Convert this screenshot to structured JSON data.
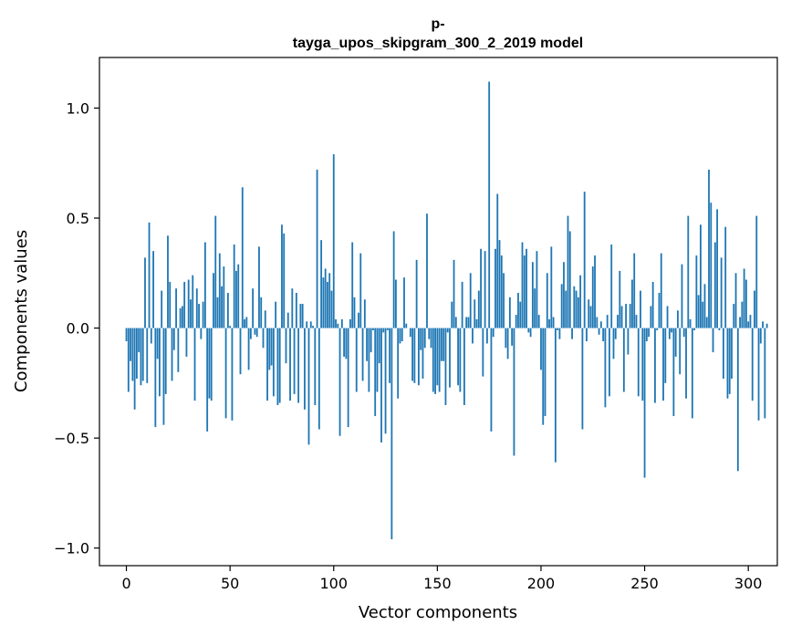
{
  "chart_data": {
    "type": "bar",
    "title_lines": [
      "p-",
      "tayga_upos_skipgram_300_2_2019 model"
    ],
    "xlabel": "Vector components",
    "ylabel": "Components values",
    "xlim": [
      -13,
      314
    ],
    "ylim": [
      -1.08,
      1.23
    ],
    "xticks": [
      0,
      50,
      100,
      150,
      200,
      250,
      300
    ],
    "yticks": [
      -1.0,
      -0.5,
      0.0,
      0.5,
      1.0
    ],
    "ytick_labels": [
      "−1.0",
      "−0.5",
      "0.0",
      "0.5",
      "1.0"
    ],
    "grid": false,
    "bar_color": "#1f77b4",
    "values": [
      -0.06,
      -0.29,
      -0.15,
      -0.24,
      -0.37,
      -0.23,
      -0.11,
      -0.26,
      -0.24,
      0.32,
      -0.25,
      0.48,
      -0.07,
      0.35,
      -0.45,
      -0.14,
      -0.31,
      0.17,
      -0.44,
      -0.3,
      0.42,
      0.21,
      -0.24,
      -0.1,
      0.18,
      -0.2,
      0.09,
      0.1,
      0.21,
      -0.13,
      0.22,
      0.13,
      0.24,
      -0.33,
      0.18,
      0.11,
      -0.05,
      0.12,
      0.39,
      -0.47,
      -0.32,
      -0.33,
      0.25,
      0.51,
      0.14,
      0.34,
      0.19,
      0.28,
      -0.41,
      0.16,
      0.01,
      -0.42,
      0.38,
      0.26,
      0.29,
      -0.21,
      0.64,
      0.04,
      0.05,
      -0.19,
      -0.05,
      0.18,
      -0.03,
      -0.04,
      0.37,
      0.14,
      -0.09,
      0.08,
      -0.33,
      -0.19,
      -0.17,
      -0.31,
      0.12,
      -0.35,
      -0.34,
      0.47,
      0.43,
      -0.16,
      0.07,
      -0.33,
      0.18,
      -0.3,
      0.16,
      -0.34,
      0.11,
      0.11,
      -0.37,
      0.03,
      -0.53,
      0.03,
      0.01,
      -0.35,
      0.72,
      -0.46,
      0.4,
      0.23,
      0.27,
      0.21,
      0.25,
      0.17,
      0.79,
      0.04,
      0.02,
      -0.49,
      0.04,
      -0.13,
      -0.14,
      -0.45,
      0.04,
      0.39,
      0.14,
      -0.29,
      0.07,
      0.34,
      -0.24,
      0.13,
      -0.15,
      -0.29,
      -0.11,
      -0.01,
      -0.4,
      -0.29,
      -0.16,
      -0.52,
      -0.02,
      -0.48,
      -0.01,
      -0.25,
      -0.96,
      0.44,
      0.22,
      -0.32,
      -0.07,
      -0.06,
      0.23,
      0.02,
      0.0,
      -0.04,
      -0.24,
      -0.25,
      0.31,
      -0.26,
      -0.1,
      -0.23,
      -0.09,
      0.52,
      -0.05,
      -0.09,
      -0.29,
      -0.3,
      -0.26,
      -0.29,
      -0.15,
      -0.15,
      -0.35,
      -0.02,
      -0.27,
      0.12,
      0.31,
      0.05,
      -0.26,
      -0.29,
      0.21,
      -0.35,
      0.05,
      0.05,
      0.25,
      -0.07,
      0.13,
      0.04,
      0.17,
      0.36,
      -0.22,
      0.35,
      -0.07,
      1.12,
      -0.47,
      -0.04,
      0.36,
      0.61,
      0.4,
      0.33,
      0.25,
      -0.09,
      -0.14,
      0.14,
      -0.08,
      -0.58,
      0.06,
      0.16,
      0.12,
      0.39,
      0.33,
      0.36,
      -0.02,
      -0.04,
      0.3,
      0.18,
      0.35,
      0.06,
      -0.19,
      -0.44,
      -0.4,
      0.25,
      0.04,
      0.37,
      0.05,
      -0.61,
      -0.01,
      -0.05,
      0.2,
      0.3,
      0.17,
      0.51,
      0.44,
      -0.05,
      0.19,
      0.17,
      0.14,
      0.24,
      -0.46,
      0.62,
      -0.06,
      0.13,
      0.1,
      0.28,
      0.33,
      0.05,
      -0.03,
      0.03,
      -0.06,
      -0.36,
      0.06,
      -0.31,
      0.38,
      -0.14,
      -0.05,
      0.06,
      0.26,
      0.1,
      -0.29,
      0.11,
      -0.12,
      0.11,
      0.22,
      0.34,
      0.06,
      -0.31,
      0.17,
      -0.33,
      -0.68,
      -0.06,
      -0.04,
      0.1,
      0.21,
      -0.34,
      -0.01,
      0.16,
      0.34,
      -0.33,
      -0.25,
      0.1,
      -0.05,
      -0.02,
      -0.4,
      -0.13,
      0.08,
      -0.21,
      0.29,
      -0.04,
      -0.32,
      0.51,
      0.04,
      -0.41,
      -0.01,
      0.33,
      0.15,
      0.47,
      0.12,
      0.2,
      0.05,
      0.72,
      0.57,
      -0.11,
      0.39,
      0.54,
      -0.01,
      0.32,
      -0.23,
      0.46,
      -0.32,
      -0.3,
      -0.23,
      0.11,
      0.25,
      -0.65,
      0.05,
      0.12,
      0.27,
      0.22,
      0.03,
      0.06,
      -0.33,
      0.17,
      0.51,
      -0.42,
      -0.07,
      0.03,
      -0.41,
      0.02
    ]
  }
}
